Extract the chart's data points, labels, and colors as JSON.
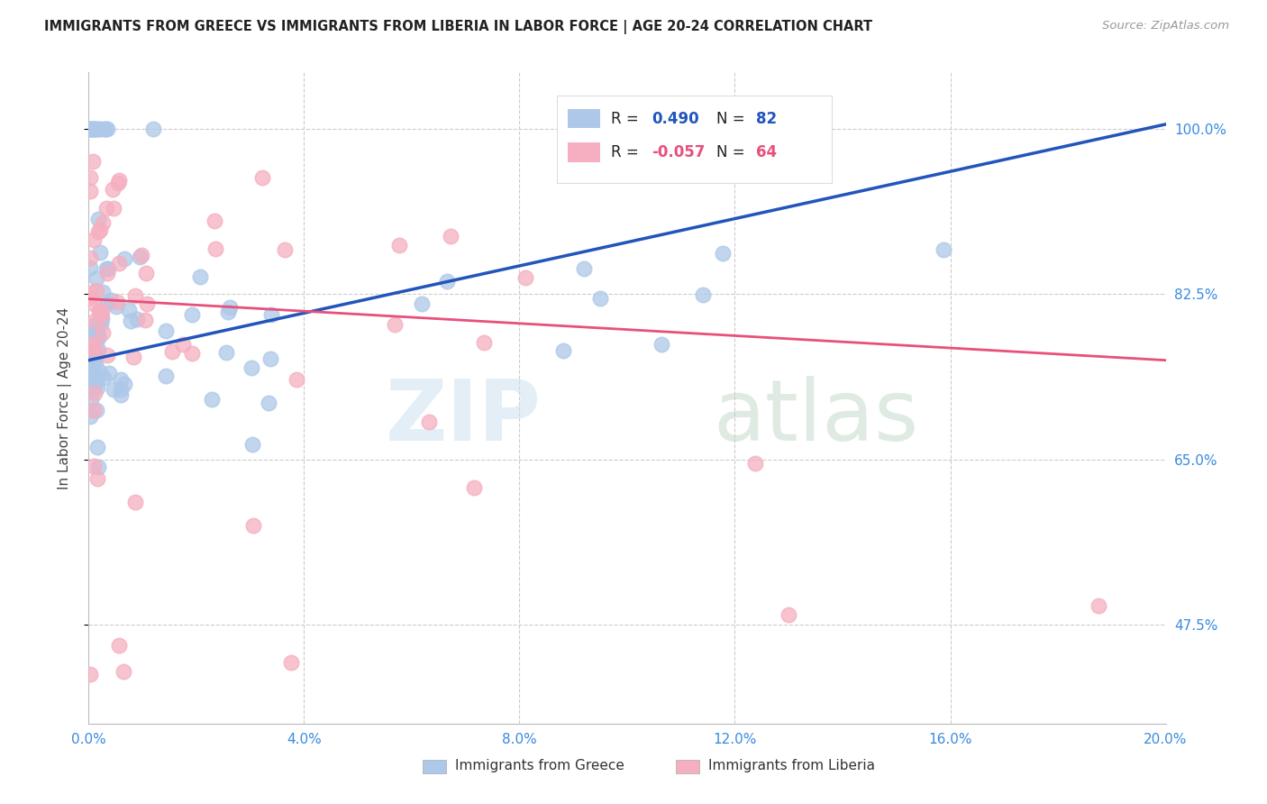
{
  "title": "IMMIGRANTS FROM GREECE VS IMMIGRANTS FROM LIBERIA IN LABOR FORCE | AGE 20-24 CORRELATION CHART",
  "source": "Source: ZipAtlas.com",
  "ylabel": "In Labor Force | Age 20-24",
  "ytick_labels": [
    "47.5%",
    "65.0%",
    "82.5%",
    "100.0%"
  ],
  "ytick_values": [
    0.475,
    0.65,
    0.825,
    1.0
  ],
  "greece_R": "0.490",
  "greece_N": "82",
  "liberia_R": "-0.057",
  "liberia_N": "64",
  "greece_color": "#adc8e8",
  "liberia_color": "#f5afc0",
  "greece_line_color": "#2255bb",
  "liberia_line_color": "#e8507a",
  "xlim": [
    0.0,
    0.2
  ],
  "ylim": [
    0.37,
    1.06
  ],
  "greece_line_x0": 0.0,
  "greece_line_y0": 0.755,
  "greece_line_x1": 0.2,
  "greece_line_y1": 1.005,
  "liberia_line_x0": 0.0,
  "liberia_line_y0": 0.82,
  "liberia_line_x1": 0.2,
  "liberia_line_y1": 0.755
}
